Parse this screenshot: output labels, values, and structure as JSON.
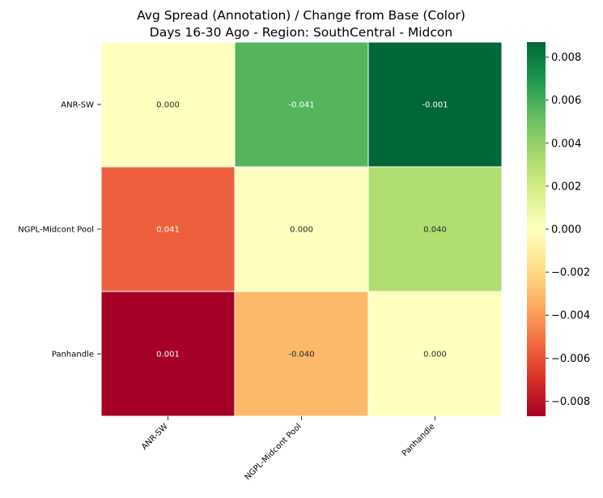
{
  "chart_data": {
    "type": "heatmap",
    "title_lines": [
      "Avg Spread (Annotation) / Change from Base (Color)",
      "Days 16-30 Ago - Region: SouthCentral - Midcon"
    ],
    "x_labels": [
      "ANR-SW",
      "NGPL-Midcont Pool",
      "Panhandle"
    ],
    "y_labels": [
      "ANR-SW",
      "NGPL-Midcont Pool",
      "Panhandle"
    ],
    "annotations": [
      [
        "0.000",
        "-0.041",
        "-0.001"
      ],
      [
        "0.041",
        "0.000",
        "0.040"
      ],
      [
        "0.001",
        "-0.040",
        "0.000"
      ]
    ],
    "color_values": [
      [
        0.0,
        0.0056,
        0.0087
      ],
      [
        -0.0056,
        0.0,
        0.0031
      ],
      [
        -0.0087,
        -0.0031,
        0.0
      ]
    ],
    "colorscale": "RdYlGn",
    "color_range": [
      -0.0087,
      0.0087
    ],
    "colorbar_ticks": [
      0.008,
      0.006,
      0.004,
      0.002,
      0.0,
      -0.002,
      -0.004,
      -0.006,
      -0.008
    ],
    "colorbar_tick_labels": [
      "0.008",
      "0.006",
      "0.004",
      "0.002",
      "0.000",
      "−0.002",
      "−0.004",
      "−0.006",
      "−0.008"
    ],
    "grid": false,
    "legend": "colorbar-right"
  }
}
